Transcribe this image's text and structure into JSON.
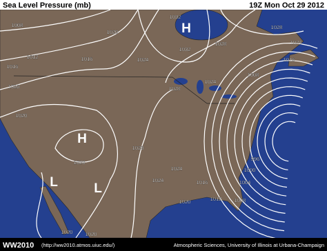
{
  "header": {
    "title": "Sea Level Pressure (mb)",
    "time": "19Z Mon Oct 29 2012"
  },
  "isobar_labels": [
    "1008",
    "1020",
    "1032",
    "1028",
    "1012",
    "1016",
    "1032",
    "1028",
    "1024",
    "1016",
    "1024",
    "1016",
    "1008",
    "1020",
    "1024",
    "1028",
    "1020",
    "1020",
    "1020",
    "996",
    "1024",
    "1000",
    "1024",
    "1016",
    "1004",
    "1020",
    "1012",
    "1008",
    "1020",
    "1020"
  ],
  "pressure_centers": [
    "H",
    "H",
    "L",
    "L"
  ],
  "footer": {
    "logo": "WW2010",
    "url": "(http://ww2010.atmos.uiuc.edu/)",
    "credit": "Atmospheric Sciences, University of Illinois at Urbana-Champaign"
  }
}
